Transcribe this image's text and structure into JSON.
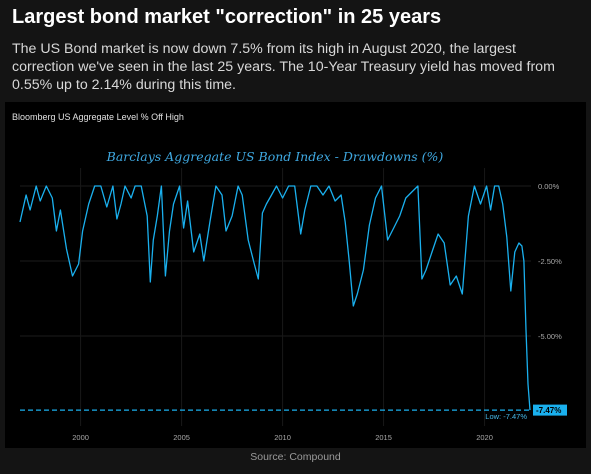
{
  "header": {
    "title": "Largest bond market \"correction\" in 25 years",
    "subtitle": "The US Bond market is now down 7.5% from its high in August 2020, the largest correction we've seen in the last 25 years. The 10-Year Treasury yield has moved from 0.55% up to 2.14% during this time."
  },
  "panel_label": "Bloomberg US Aggregate Level % Off High",
  "footer": {
    "source": "Source: Compound"
  },
  "colors": {
    "line": "#1ab0ee",
    "accent": "#3fa8e0",
    "background": "#000000"
  },
  "chart_data": {
    "type": "line",
    "title": "Barclays Aggregate US Bond Index - Drawdowns (%)",
    "xlabel": "",
    "ylabel": "",
    "xlim": [
      1997.0,
      2022.3
    ],
    "ylim": [
      -8.0,
      0.6
    ],
    "x_ticks": [
      2000,
      2005,
      2010,
      2015,
      2020
    ],
    "y_ticks": [
      {
        "value": 0,
        "label": "0.00%"
      },
      {
        "value": -2.5,
        "label": "-2.50%"
      },
      {
        "value": -5,
        "label": "-5.00%"
      }
    ],
    "reference_line": {
      "value": -7.47,
      "label": "Low: -7.47%"
    },
    "last_value_label": "-7.47%",
    "series": [
      {
        "x": [
          1997.0,
          1997.3,
          1997.5,
          1997.8,
          1998.0,
          1998.3,
          1998.6,
          1998.8,
          1999.0,
          1999.3,
          1999.6,
          1999.9,
          2000.1,
          2000.4,
          2000.7,
          2001.0,
          2001.3,
          2001.6,
          2001.8,
          2002.0,
          2002.2,
          2002.5,
          2002.7,
          2003.0,
          2003.3,
          2003.45,
          2003.6,
          2003.8,
          2004.0,
          2004.2,
          2004.4,
          2004.6,
          2004.9,
          2005.1,
          2005.3,
          2005.6,
          2005.9,
          2006.1,
          2006.4,
          2006.7,
          2007.0,
          2007.2,
          2007.5,
          2007.8,
          2008.0,
          2008.3,
          2008.6,
          2008.8,
          2009.0,
          2009.2,
          2009.45,
          2009.7,
          2010.0,
          2010.3,
          2010.6,
          2010.9,
          2011.1,
          2011.4,
          2011.7,
          2012.0,
          2012.3,
          2012.6,
          2012.9,
          2013.1,
          2013.3,
          2013.5,
          2013.7,
          2014.0,
          2014.3,
          2014.6,
          2014.9,
          2015.2,
          2015.5,
          2015.8,
          2016.1,
          2016.4,
          2016.7,
          2016.9,
          2017.1,
          2017.4,
          2017.7,
          2018.0,
          2018.3,
          2018.6,
          2018.9,
          2019.2,
          2019.5,
          2019.8,
          2020.1,
          2020.3,
          2020.5,
          2020.7,
          2020.9,
          2021.1,
          2021.3,
          2021.5,
          2021.7,
          2021.85,
          2021.95,
          2022.05,
          2022.15,
          2022.25
        ],
        "values": [
          -1.2,
          -0.3,
          -0.8,
          0.0,
          -0.5,
          0.0,
          -0.4,
          -1.5,
          -0.8,
          -2.1,
          -3.0,
          -2.6,
          -1.5,
          -0.6,
          0.0,
          0.0,
          -0.7,
          0.0,
          -1.1,
          -0.6,
          0.0,
          -0.4,
          0.0,
          0.0,
          -1.0,
          -3.2,
          -1.8,
          -1.0,
          0.0,
          -3.0,
          -1.5,
          -0.6,
          0.0,
          -1.4,
          -0.5,
          -2.2,
          -1.6,
          -2.5,
          -1.2,
          0.0,
          -0.3,
          -1.5,
          -1.0,
          0.0,
          -0.3,
          -1.8,
          -2.6,
          -3.1,
          -0.9,
          -0.6,
          -0.3,
          0.0,
          -0.4,
          0.0,
          0.0,
          -1.6,
          -0.8,
          0.0,
          0.0,
          -0.3,
          0.0,
          -0.5,
          -0.3,
          -1.2,
          -2.5,
          -4.0,
          -3.6,
          -2.8,
          -1.3,
          -0.4,
          0.0,
          -1.8,
          -1.4,
          -1.0,
          -0.4,
          -0.2,
          0.0,
          -3.1,
          -2.8,
          -2.2,
          -1.6,
          -1.9,
          -3.3,
          -3.0,
          -3.6,
          -1.0,
          0.0,
          -0.6,
          0.0,
          -0.8,
          0.0,
          0.0,
          -0.6,
          -1.7,
          -3.5,
          -2.2,
          -1.9,
          -2.0,
          -2.5,
          -4.8,
          -6.6,
          -7.47
        ]
      }
    ]
  }
}
